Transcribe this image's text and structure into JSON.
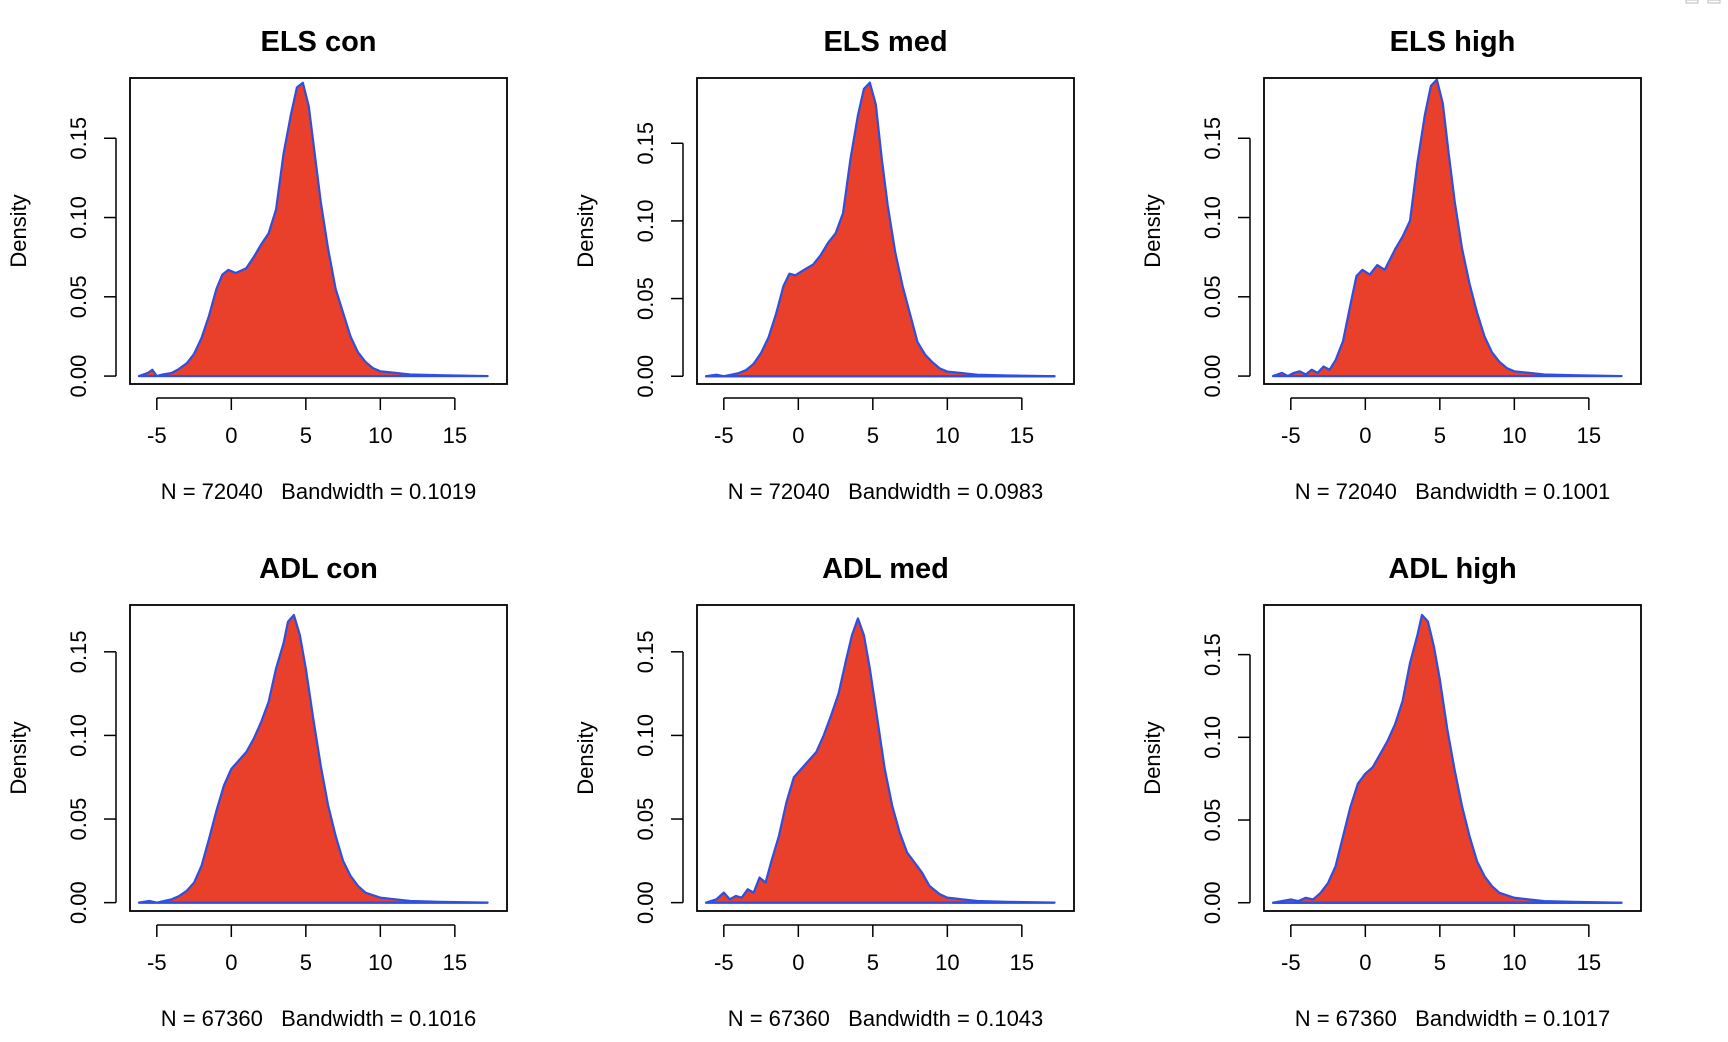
{
  "panel_style": {
    "fill_color": "#e8402a",
    "line_color": "#2e4fe0",
    "axis_color": "#000000"
  },
  "chart_data": [
    {
      "type": "area",
      "title": "ELS con",
      "ylabel": "Density",
      "xlabel": "N = 72040   Bandwidth = 0.1019",
      "xlim": [
        -6.8,
        18.5
      ],
      "ylim": [
        -0.005,
        0.188
      ],
      "x_ticks": [
        -5,
        0,
        5,
        10,
        15
      ],
      "y_ticks": [
        0.0,
        0.05,
        0.1,
        0.15
      ],
      "y_tick_labels": [
        "0.00",
        "0.05",
        "0.10",
        "0.15"
      ],
      "series": [
        {
          "x": [
            -6.2,
            -5.6,
            -5.3,
            -5.0,
            -4.6,
            -4.0,
            -3.6,
            -3.0,
            -2.5,
            -2.0,
            -1.5,
            -1.0,
            -0.6,
            -0.2,
            0.3,
            1.0,
            1.5,
            2.0,
            2.5,
            3.0,
            3.5,
            4.0,
            4.4,
            4.8,
            5.2,
            5.6,
            6.0,
            6.5,
            7.0,
            7.5,
            8.0,
            8.5,
            9.0,
            9.5,
            10.0,
            11.0,
            12.0,
            14.0,
            17.2
          ],
          "y": [
            0.0,
            0.002,
            0.004,
            0.0,
            0.001,
            0.002,
            0.004,
            0.008,
            0.014,
            0.024,
            0.038,
            0.055,
            0.064,
            0.067,
            0.065,
            0.068,
            0.075,
            0.083,
            0.09,
            0.105,
            0.14,
            0.165,
            0.182,
            0.185,
            0.17,
            0.14,
            0.11,
            0.08,
            0.055,
            0.04,
            0.025,
            0.015,
            0.009,
            0.005,
            0.003,
            0.002,
            0.001,
            0.0005,
            0.0
          ]
        }
      ]
    },
    {
      "type": "area",
      "title": "ELS med",
      "ylabel": "Density",
      "xlabel": "N = 72040   Bandwidth = 0.0983",
      "xlim": [
        -6.8,
        18.5
      ],
      "ylim": [
        -0.005,
        0.192
      ],
      "x_ticks": [
        -5,
        0,
        5,
        10,
        15
      ],
      "y_ticks": [
        0.0,
        0.05,
        0.1,
        0.15
      ],
      "y_tick_labels": [
        "0.00",
        "0.05",
        "0.10",
        "0.15"
      ],
      "series": [
        {
          "x": [
            -6.2,
            -5.5,
            -5.0,
            -4.5,
            -4.0,
            -3.5,
            -3.0,
            -2.5,
            -2.0,
            -1.5,
            -1.0,
            -0.6,
            -0.2,
            0.3,
            1.0,
            1.5,
            2.0,
            2.5,
            3.0,
            3.5,
            4.0,
            4.4,
            4.8,
            5.2,
            5.6,
            6.0,
            6.5,
            7.0,
            7.5,
            8.0,
            8.5,
            9.0,
            9.5,
            10.0,
            11.0,
            12.0,
            14.0,
            17.2
          ],
          "y": [
            0.0,
            0.001,
            0.0,
            0.001,
            0.002,
            0.004,
            0.008,
            0.015,
            0.025,
            0.04,
            0.058,
            0.066,
            0.065,
            0.068,
            0.072,
            0.078,
            0.086,
            0.092,
            0.105,
            0.14,
            0.168,
            0.185,
            0.189,
            0.175,
            0.14,
            0.11,
            0.08,
            0.058,
            0.04,
            0.022,
            0.014,
            0.009,
            0.005,
            0.003,
            0.002,
            0.001,
            0.0005,
            0.0
          ]
        }
      ]
    },
    {
      "type": "area",
      "title": "ELS high",
      "ylabel": "Density",
      "xlabel": "N = 72040   Bandwidth = 0.1001",
      "xlim": [
        -6.8,
        18.5
      ],
      "ylim": [
        -0.005,
        0.188
      ],
      "x_ticks": [
        -5,
        0,
        5,
        10,
        15
      ],
      "y_ticks": [
        0.0,
        0.05,
        0.1,
        0.15
      ],
      "y_tick_labels": [
        "0.00",
        "0.05",
        "0.10",
        "0.15"
      ],
      "series": [
        {
          "x": [
            -6.2,
            -5.6,
            -5.2,
            -4.8,
            -4.4,
            -4.0,
            -3.6,
            -3.2,
            -2.8,
            -2.4,
            -2.0,
            -1.5,
            -1.0,
            -0.6,
            -0.2,
            0.3,
            0.8,
            1.3,
            2.0,
            2.5,
            3.0,
            3.5,
            4.0,
            4.4,
            4.8,
            5.2,
            5.6,
            6.0,
            6.5,
            7.0,
            7.5,
            8.0,
            8.5,
            9.0,
            9.5,
            10.0,
            11.0,
            12.0,
            14.0,
            17.2
          ],
          "y": [
            0.0,
            0.002,
            0.0,
            0.002,
            0.003,
            0.001,
            0.004,
            0.002,
            0.006,
            0.004,
            0.01,
            0.022,
            0.045,
            0.063,
            0.067,
            0.064,
            0.07,
            0.067,
            0.08,
            0.088,
            0.098,
            0.135,
            0.165,
            0.183,
            0.187,
            0.172,
            0.14,
            0.11,
            0.08,
            0.058,
            0.04,
            0.025,
            0.015,
            0.009,
            0.005,
            0.003,
            0.002,
            0.001,
            0.0005,
            0.0
          ]
        }
      ]
    },
    {
      "type": "area",
      "title": "ADL con",
      "ylabel": "Density",
      "xlabel": "N = 67360   Bandwidth = 0.1016",
      "xlim": [
        -6.8,
        18.5
      ],
      "ylim": [
        -0.005,
        0.178
      ],
      "x_ticks": [
        -5,
        0,
        5,
        10,
        15
      ],
      "y_ticks": [
        0.0,
        0.05,
        0.1,
        0.15
      ],
      "y_tick_labels": [
        "0.00",
        "0.05",
        "0.10",
        "0.15"
      ],
      "series": [
        {
          "x": [
            -6.2,
            -5.5,
            -5.0,
            -4.5,
            -4.0,
            -3.5,
            -3.0,
            -2.5,
            -2.0,
            -1.5,
            -1.0,
            -0.5,
            0.0,
            0.5,
            1.0,
            1.5,
            2.0,
            2.5,
            3.0,
            3.5,
            3.8,
            4.2,
            4.6,
            5.0,
            5.5,
            6.0,
            6.5,
            7.0,
            7.5,
            8.0,
            8.5,
            9.0,
            10.0,
            11.0,
            12.0,
            14.0,
            17.2
          ],
          "y": [
            0.0,
            0.001,
            0.0,
            0.001,
            0.002,
            0.004,
            0.007,
            0.012,
            0.022,
            0.038,
            0.055,
            0.07,
            0.08,
            0.085,
            0.09,
            0.098,
            0.108,
            0.12,
            0.14,
            0.155,
            0.168,
            0.172,
            0.16,
            0.14,
            0.11,
            0.082,
            0.058,
            0.04,
            0.025,
            0.016,
            0.01,
            0.006,
            0.003,
            0.002,
            0.001,
            0.0005,
            0.0
          ]
        }
      ]
    },
    {
      "type": "area",
      "title": "ADL med",
      "ylabel": "Density",
      "xlabel": "N = 67360   Bandwidth = 0.1043",
      "xlim": [
        -6.8,
        18.5
      ],
      "ylim": [
        -0.005,
        0.178
      ],
      "x_ticks": [
        -5,
        0,
        5,
        10,
        15
      ],
      "y_ticks": [
        0.0,
        0.05,
        0.1,
        0.15
      ],
      "y_tick_labels": [
        "0.00",
        "0.05",
        "0.10",
        "0.15"
      ],
      "series": [
        {
          "x": [
            -6.2,
            -5.5,
            -5.0,
            -4.6,
            -4.2,
            -3.8,
            -3.4,
            -3.0,
            -2.6,
            -2.2,
            -1.8,
            -1.3,
            -0.8,
            -0.3,
            0.2,
            0.7,
            1.2,
            1.7,
            2.2,
            2.7,
            3.2,
            3.6,
            4.0,
            4.4,
            4.8,
            5.3,
            5.8,
            6.3,
            6.8,
            7.3,
            7.8,
            8.3,
            8.8,
            9.5,
            10.0,
            11.0,
            12.0,
            14.0,
            17.2
          ],
          "y": [
            0.0,
            0.002,
            0.006,
            0.002,
            0.004,
            0.003,
            0.008,
            0.006,
            0.015,
            0.012,
            0.025,
            0.04,
            0.06,
            0.075,
            0.08,
            0.085,
            0.09,
            0.1,
            0.112,
            0.125,
            0.145,
            0.16,
            0.17,
            0.16,
            0.14,
            0.11,
            0.08,
            0.058,
            0.042,
            0.03,
            0.024,
            0.018,
            0.01,
            0.005,
            0.003,
            0.002,
            0.001,
            0.0005,
            0.0
          ]
        }
      ]
    },
    {
      "type": "area",
      "title": "ADL high",
      "ylabel": "Density",
      "xlabel": "N = 67360   Bandwidth = 0.1017",
      "xlim": [
        -6.8,
        18.5
      ],
      "ylim": [
        -0.005,
        0.18
      ],
      "x_ticks": [
        -5,
        0,
        5,
        10,
        15
      ],
      "y_ticks": [
        0.0,
        0.05,
        0.1,
        0.15
      ],
      "y_tick_labels": [
        "0.00",
        "0.05",
        "0.10",
        "0.15"
      ],
      "series": [
        {
          "x": [
            -6.2,
            -5.6,
            -5.0,
            -4.5,
            -4.0,
            -3.5,
            -3.0,
            -2.5,
            -2.0,
            -1.5,
            -1.0,
            -0.5,
            0.0,
            0.5,
            1.0,
            1.5,
            2.0,
            2.5,
            3.0,
            3.5,
            3.8,
            4.2,
            4.6,
            5.0,
            5.5,
            6.0,
            6.5,
            7.0,
            7.5,
            8.0,
            8.5,
            9.0,
            10.0,
            11.0,
            12.0,
            14.0,
            17.2
          ],
          "y": [
            0.0,
            0.001,
            0.002,
            0.001,
            0.003,
            0.002,
            0.006,
            0.012,
            0.022,
            0.04,
            0.058,
            0.072,
            0.078,
            0.082,
            0.09,
            0.098,
            0.108,
            0.122,
            0.145,
            0.162,
            0.174,
            0.17,
            0.155,
            0.135,
            0.105,
            0.08,
            0.058,
            0.04,
            0.025,
            0.016,
            0.01,
            0.006,
            0.003,
            0.002,
            0.001,
            0.0005,
            0.0
          ]
        }
      ]
    }
  ]
}
